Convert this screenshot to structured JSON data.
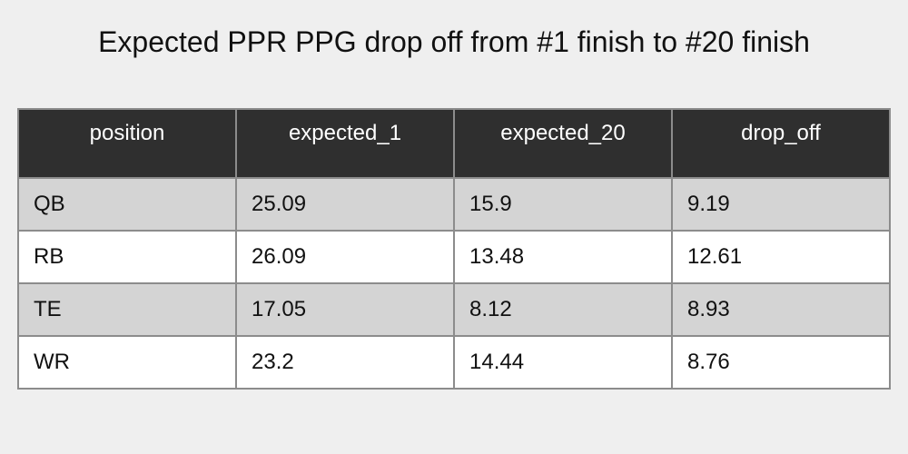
{
  "chart_data": {
    "type": "table",
    "title": "Expected PPR PPG drop off from #1 finish to #20 finish",
    "columns": [
      "position",
      "expected_1",
      "expected_20",
      "drop_off"
    ],
    "rows": [
      [
        "QB",
        "25.09",
        "15.9",
        "9.19"
      ],
      [
        "RB",
        "26.09",
        "13.48",
        "12.61"
      ],
      [
        "TE",
        "17.05",
        "8.12",
        "8.93"
      ],
      [
        "WR",
        "23.2",
        "14.44",
        "8.76"
      ]
    ]
  },
  "colors": {
    "header_bg": "#2f2f2f",
    "header_text": "#ffffff",
    "row_odd_bg": "#d4d4d4",
    "row_even_bg": "#ffffff",
    "border": "#8c8c8c",
    "page_bg": "#efefef"
  }
}
